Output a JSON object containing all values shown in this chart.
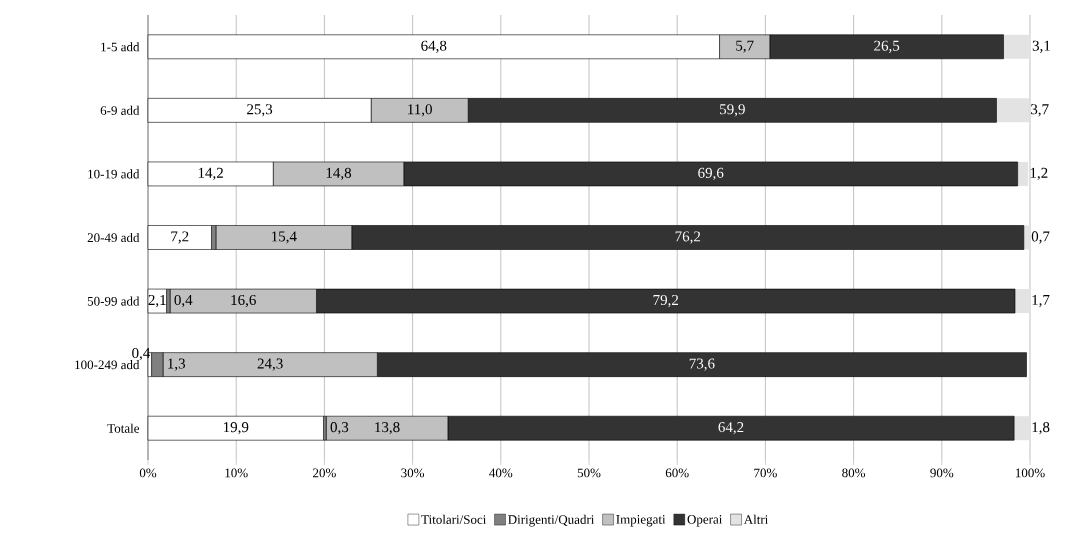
{
  "chart_data": {
    "type": "bar",
    "orientation": "horizontal",
    "stacked": true,
    "categories": [
      "1-5 add",
      "6-9 add",
      "10-19 add",
      "20-49 add",
      "50-99 add",
      "100-249 add",
      "Totale"
    ],
    "series": [
      {
        "name": "Titolari/Soci",
        "color": "#ffffff",
        "values": [
          64.8,
          25.3,
          14.2,
          7.2,
          2.1,
          0.4,
          19.9
        ],
        "value_labels": [
          "64,8",
          "25,3",
          "14,2",
          "7,2",
          "2,1",
          "0,4",
          "19,9"
        ]
      },
      {
        "name": "Dirigenti/Quadri",
        "color": "#808080",
        "values": [
          0,
          0,
          0,
          0.5,
          0.4,
          1.3,
          0.3
        ],
        "value_labels": [
          null,
          null,
          null,
          null,
          "0,4",
          "1,3",
          "0,3"
        ]
      },
      {
        "name": "Impiegati",
        "color": "#c0c0c0",
        "values": [
          5.7,
          11.0,
          14.8,
          15.4,
          16.6,
          24.3,
          13.8
        ],
        "value_labels": [
          "5,7",
          "11,0",
          "14,8",
          "15,4",
          "16,6",
          "24,3",
          "13,8"
        ]
      },
      {
        "name": "Operai",
        "color": "#333333",
        "values": [
          26.5,
          59.9,
          69.6,
          76.2,
          79.2,
          73.6,
          64.2
        ],
        "value_labels": [
          "26,5",
          "59,9",
          "69,6",
          "76,2",
          "79,2",
          "73,6",
          "64,2"
        ]
      },
      {
        "name": "Altri",
        "color": "#e3e3e3",
        "values": [
          3.1,
          3.7,
          1.2,
          0.7,
          1.7,
          0,
          1.8
        ],
        "value_labels": [
          "3,1",
          "3,7",
          "1,2",
          "0,7",
          "1,7",
          null,
          "1,8"
        ]
      }
    ],
    "xlim": [
      0,
      100
    ],
    "xticks": [
      {
        "value": 0,
        "label": "0%"
      },
      {
        "value": 10,
        "label": "10%"
      },
      {
        "value": 20,
        "label": "20%"
      },
      {
        "value": 30,
        "label": "30%"
      },
      {
        "value": 40,
        "label": "40%"
      },
      {
        "value": 50,
        "label": "50%"
      },
      {
        "value": 60,
        "label": "60%"
      },
      {
        "value": 70,
        "label": "70%"
      },
      {
        "value": 80,
        "label": "80%"
      },
      {
        "value": 90,
        "label": "90%"
      },
      {
        "value": 100,
        "label": "100%"
      }
    ],
    "grid": "x",
    "legend": "bottom"
  }
}
